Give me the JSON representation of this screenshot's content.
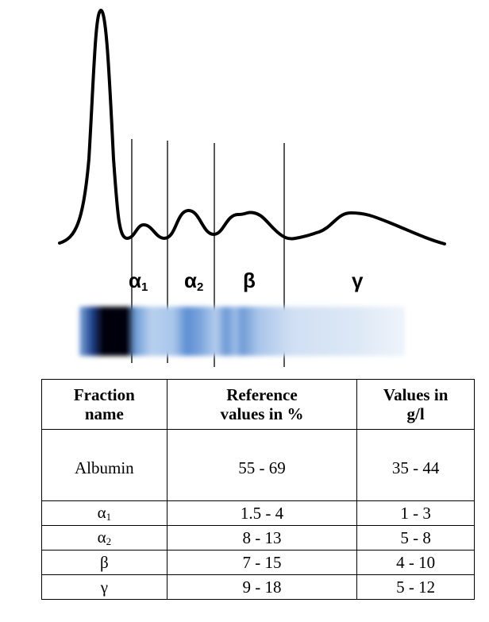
{
  "diagram": {
    "labels": [
      {
        "symbol": "α",
        "sub": "1"
      },
      {
        "symbol": "α",
        "sub": "2"
      },
      {
        "symbol": "β"
      },
      {
        "symbol": "γ"
      }
    ]
  },
  "table": {
    "header": [
      "Fraction name",
      "Reference values in %",
      "Values in g/l"
    ],
    "rows": [
      {
        "name": "Albumin",
        "percent": "55 - 69",
        "gl": "35 - 44"
      },
      {
        "name": "α",
        "sub": "1",
        "percent": "1.5 - 4",
        "gl": "1 - 3"
      },
      {
        "name": "α",
        "sub": "2",
        "percent": "8 - 13",
        "gl": "5 - 8"
      },
      {
        "name": "β",
        "percent": "7 - 15",
        "gl": "4 - 10"
      },
      {
        "name": "γ",
        "percent": "9 - 18",
        "gl": "5 - 12"
      }
    ]
  }
}
